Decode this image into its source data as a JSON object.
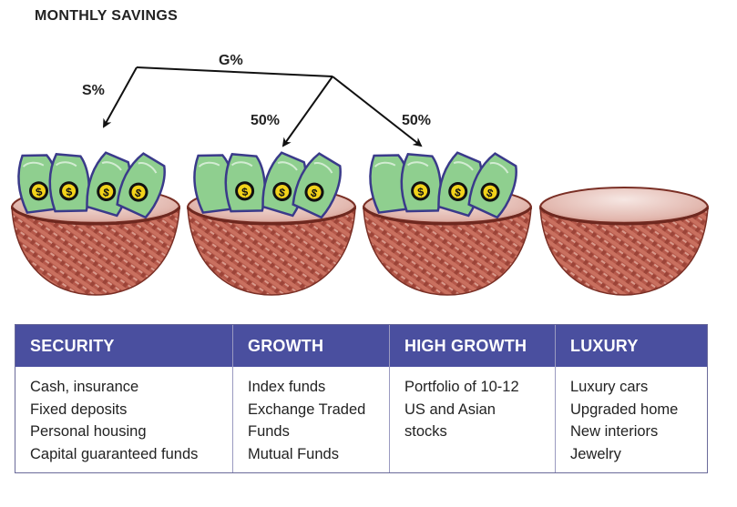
{
  "title": "MONTHLY SAVINGS",
  "arrows": {
    "savings_label": "S%",
    "growth_label": "G%",
    "growth_split_left": "50%",
    "growth_split_right": "50%"
  },
  "columns": [
    {
      "heading": "SECURITY",
      "items": [
        "Cash, insurance",
        "Fixed deposits",
        "Personal housing",
        "Capital guaranteed funds"
      ]
    },
    {
      "heading": "GROWTH",
      "items": [
        "Index funds",
        "Exchange Traded",
        "Funds",
        "Mutual Funds"
      ]
    },
    {
      "heading": "HIGH GROWTH",
      "items": [
        "Portfolio of 10-12",
        "US and Asian",
        "stocks"
      ]
    },
    {
      "heading": "LUXURY",
      "items": [
        "Luxury cars",
        "Upgraded home",
        "New interiors",
        "Jewelry"
      ]
    }
  ],
  "baskets": [
    {
      "contents": "money"
    },
    {
      "contents": "money"
    },
    {
      "contents": "money"
    },
    {
      "contents": "empty"
    }
  ],
  "colors": {
    "header_bg": "#4a4f9f",
    "basket": "#b5584a",
    "money": "#8fcf8f",
    "coin": "#f2d21a"
  },
  "icons": {
    "money_symbol": "$"
  }
}
